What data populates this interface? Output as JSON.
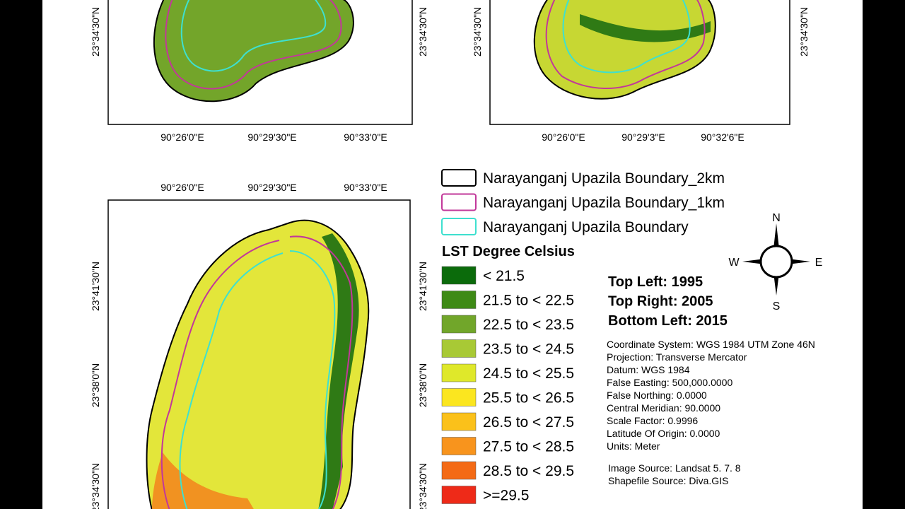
{
  "maps": [
    {
      "x_labels": [
        "90°26'0\"E",
        "90°29'30\"E",
        "90°33'0\"E"
      ],
      "y_labels": [
        "23°34'30\"N"
      ]
    },
    {
      "x_labels": [
        "90°26'0\"E",
        "90°29'3\"E",
        "90°32'6\"E"
      ],
      "y_labels": [
        "23°34'30\"N"
      ]
    },
    {
      "x_labels": [
        "90°26'0\"E",
        "90°29'30\"E",
        "90°33'0\"E"
      ],
      "y_labels": [
        "23°41'30\"N",
        "23°38'0\"N",
        "23°34'30\"N"
      ]
    }
  ],
  "legend": {
    "boundaries": [
      {
        "label": "Narayanganj Upazila Boundary_2km",
        "color": "#000000"
      },
      {
        "label": "Narayanganj Upazila Boundary_1km",
        "color": "#c2389a"
      },
      {
        "label": "Narayanganj Upazila Boundary",
        "color": "#3ee0cf"
      }
    ],
    "title": "LST Degree Celsius",
    "classes": [
      {
        "label": "< 21.5",
        "color": "#0b6b0b"
      },
      {
        "label": "21.5 to < 22.5",
        "color": "#3e8a16"
      },
      {
        "label": "22.5 to < 23.5",
        "color": "#71a62a"
      },
      {
        "label": "23.5 to < 24.5",
        "color": "#a8c935"
      },
      {
        "label": "24.5 to < 25.5",
        "color": "#dfe82a"
      },
      {
        "label": "25.5 to < 26.5",
        "color": "#fbe61f"
      },
      {
        "label": "26.5 to < 27.5",
        "color": "#fbc11a"
      },
      {
        "label": "27.5 to < 28.5",
        "color": "#f8941d"
      },
      {
        "label": "28.5 to < 29.5",
        "color": "#f46a15"
      },
      {
        "label": ">=29.5",
        "color": "#ee2a18"
      }
    ]
  },
  "compass": {
    "n": "N",
    "s": "S",
    "e": "E",
    "w": "W"
  },
  "years": [
    "Top Left: 1995",
    "Top Right: 2005",
    "Bottom Left: 2015"
  ],
  "metadata": [
    "Coordinate System: WGS 1984 UTM Zone 46N",
    "Projection: Transverse Mercator",
    "Datum: WGS 1984",
    "False Easting: 500,000.0000",
    "False Northing: 0.0000",
    "Central Meridian: 90.0000",
    "Scale Factor: 0.9996",
    "Latitude Of Origin: 0.0000",
    "Units: Meter"
  ],
  "sources": [
    "Image Source: Landsat 5. 7. 8",
    "Shapefile Source: Diva.GIS"
  ]
}
